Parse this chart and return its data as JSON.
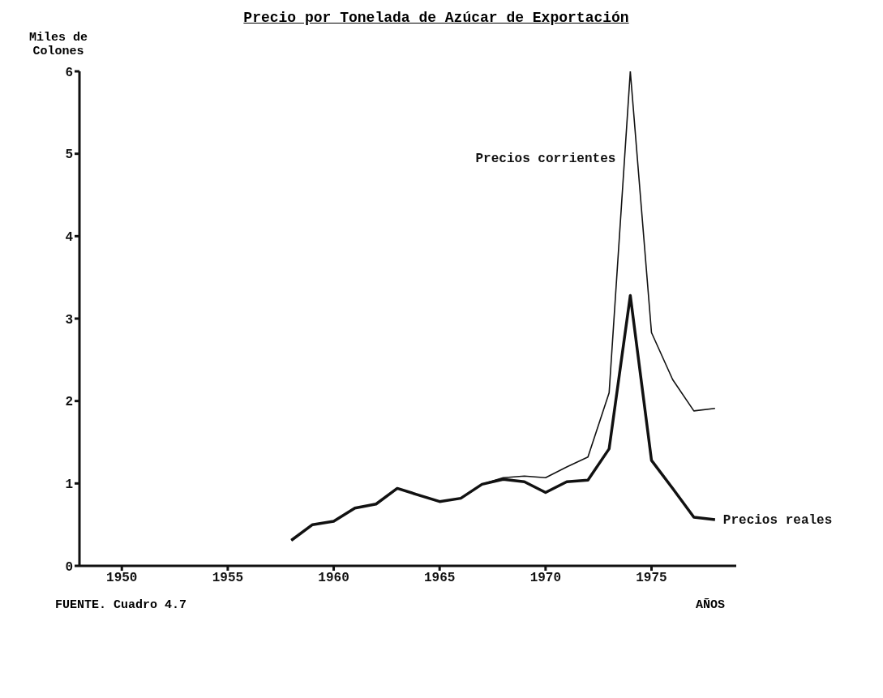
{
  "chart_data": {
    "type": "line",
    "title": "Precio por Tonelada de Azúcar de Exportación",
    "ylabel": "Miles de Colones",
    "xlabel": "AÑOS",
    "annotations": [
      "FUENTE. Cuadro 4.7"
    ],
    "x": [
      1958,
      1959,
      1960,
      1961,
      1962,
      1963,
      1964,
      1965,
      1966,
      1967,
      1968,
      1969,
      1970,
      1971,
      1972,
      1973,
      1974,
      1975,
      1976,
      1977,
      1978
    ],
    "series": [
      {
        "name": "Precios corrientes",
        "color": "#111111",
        "values": [
          0.31,
          0.5,
          0.54,
          0.7,
          0.75,
          0.94,
          0.86,
          0.78,
          0.82,
          0.99,
          1.07,
          1.09,
          1.07,
          1.2,
          1.32,
          2.1,
          6.0,
          2.83,
          2.26,
          1.88,
          1.91
        ]
      },
      {
        "name": "Precios reales",
        "color": "#111111",
        "values": [
          0.31,
          0.5,
          0.54,
          0.7,
          0.75,
          0.94,
          0.86,
          0.78,
          0.82,
          0.99,
          1.05,
          1.02,
          0.89,
          1.02,
          1.04,
          1.42,
          3.28,
          1.28,
          0.94,
          0.59,
          0.56
        ]
      }
    ],
    "xlim": [
      1948,
      1979
    ],
    "xticks": [
      1950,
      1955,
      1960,
      1965,
      1970,
      1975
    ],
    "ylim": [
      0,
      6
    ],
    "yticks": [
      0,
      1,
      2,
      3,
      4,
      5,
      6
    ],
    "grid": false,
    "legend": false,
    "marker": "none",
    "line_style": "solid"
  }
}
